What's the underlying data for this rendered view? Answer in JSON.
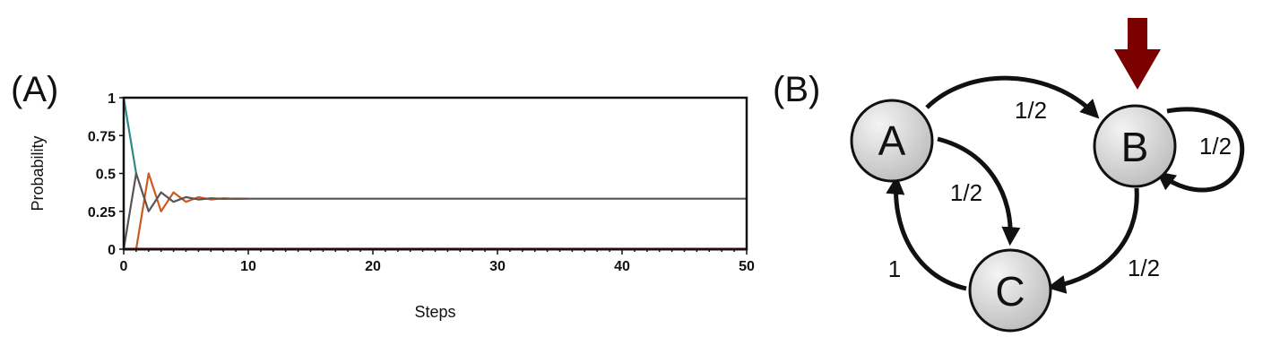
{
  "panels": {
    "a_label": "(A)",
    "b_label": "(B)"
  },
  "chart_data": {
    "type": "line",
    "xlabel": "Steps",
    "ylabel": "Probability",
    "xlim": [
      0,
      50
    ],
    "ylim": [
      0,
      1
    ],
    "x_ticks": [
      0,
      10,
      20,
      30,
      40,
      50
    ],
    "y_ticks": [
      0,
      0.25,
      0.5,
      0.75,
      1
    ],
    "y_tick_labels": [
      "0",
      "0.25",
      "0.5",
      "0.75",
      "1"
    ],
    "grid": false,
    "series": [
      {
        "color": "#2a8a8a",
        "x": [
          0,
          1
        ],
        "values": [
          1,
          0.5
        ]
      },
      {
        "color": "#cc5a1a",
        "x": [
          0,
          1,
          2,
          3,
          4,
          5,
          6,
          7,
          8,
          9,
          10
        ],
        "values": [
          0,
          0,
          0.5,
          0.25,
          0.375,
          0.3125,
          0.34375,
          0.328,
          0.336,
          0.332,
          0.334
        ]
      },
      {
        "color": "#555555",
        "x": [
          0,
          1,
          2,
          3,
          4,
          5,
          6,
          7,
          8,
          9,
          10,
          50
        ],
        "values": [
          0,
          0.5,
          0.25,
          0.375,
          0.3125,
          0.34375,
          0.328,
          0.336,
          0.332,
          0.334,
          0.333,
          0.333
        ]
      },
      {
        "color": "#8b0000",
        "x": [
          0,
          50
        ],
        "values": [
          0,
          0
        ]
      }
    ]
  },
  "diagram": {
    "nodes": [
      {
        "id": "A",
        "label": "A"
      },
      {
        "id": "B",
        "label": "B"
      },
      {
        "id": "C",
        "label": "C"
      }
    ],
    "edges": [
      {
        "from": "A",
        "to": "B",
        "label": "1/2"
      },
      {
        "from": "A",
        "to": "C",
        "label": "1/2"
      },
      {
        "from": "B",
        "to": "B",
        "label": "1/2"
      },
      {
        "from": "B",
        "to": "C",
        "label": "1/2"
      },
      {
        "from": "C",
        "to": "A",
        "label": "1"
      }
    ],
    "start_marker_color": "#7b0000"
  }
}
